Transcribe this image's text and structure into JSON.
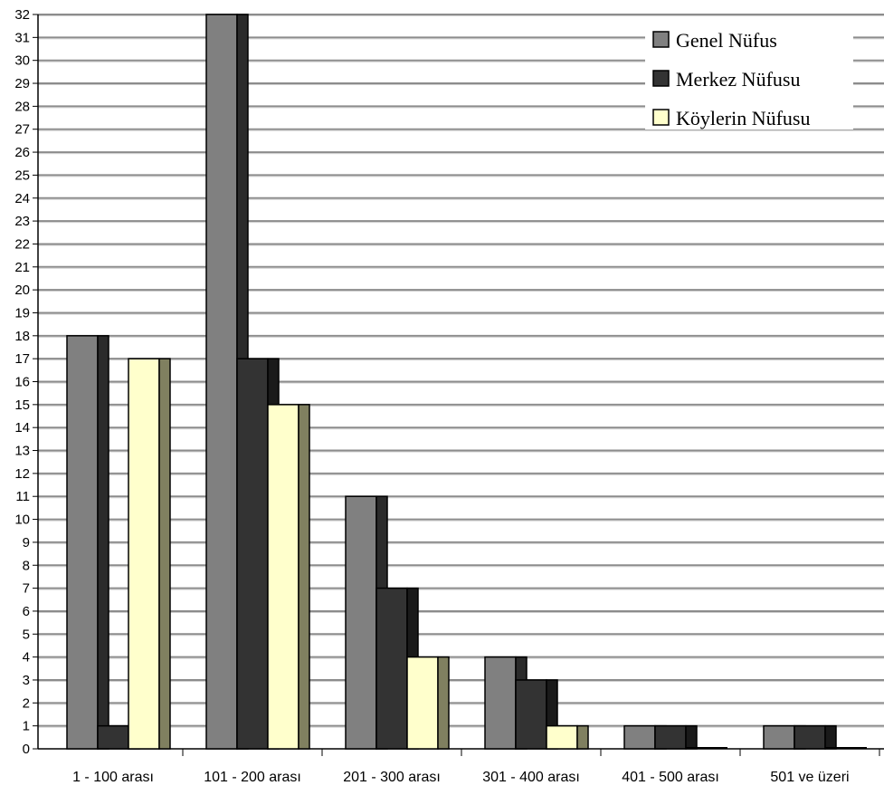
{
  "chart_data": {
    "type": "bar",
    "title": "",
    "xlabel": "",
    "ylabel": "",
    "ylim": [
      0,
      32
    ],
    "yticks": [
      0,
      1,
      2,
      3,
      4,
      5,
      6,
      7,
      8,
      9,
      10,
      11,
      12,
      13,
      14,
      15,
      16,
      17,
      18,
      19,
      20,
      21,
      22,
      23,
      24,
      25,
      26,
      27,
      28,
      29,
      30,
      31,
      32
    ],
    "grid": true,
    "legend_position": "top-right",
    "categories": [
      "1 - 100 arası",
      "101 - 200 arası",
      "201 - 300 arası",
      "301 - 400 arası",
      "401 - 500 arası",
      "501 ve üzeri"
    ],
    "series": [
      {
        "name": "Genel Nüfus",
        "values": [
          18,
          32,
          11,
          4,
          1,
          1
        ],
        "color": "#808080",
        "side_color": "#2b2b2b"
      },
      {
        "name": "Merkez Nüfusu",
        "values": [
          1,
          17,
          7,
          3,
          1,
          1
        ],
        "color": "#333333",
        "side_color": "#1a1a1a"
      },
      {
        "name": "Köylerin Nüfusu",
        "values": [
          17,
          15,
          4,
          1,
          0,
          0
        ],
        "color": "#ffffcc",
        "side_color": "#808060"
      }
    ]
  }
}
